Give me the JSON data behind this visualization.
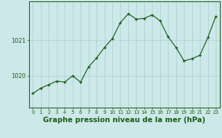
{
  "x": [
    0,
    1,
    2,
    3,
    4,
    5,
    6,
    7,
    8,
    9,
    10,
    11,
    12,
    13,
    14,
    15,
    16,
    17,
    18,
    19,
    20,
    21,
    22,
    23
  ],
  "y": [
    1019.5,
    1019.65,
    1019.75,
    1019.85,
    1019.82,
    1020.0,
    1019.82,
    1020.25,
    1020.5,
    1020.8,
    1021.05,
    1021.5,
    1021.75,
    1021.6,
    1021.62,
    1021.72,
    1021.55,
    1021.1,
    1020.8,
    1020.42,
    1020.48,
    1020.58,
    1021.08,
    1021.68
  ],
  "line_color": "#1a5c1a",
  "marker_color": "#1a5c1a",
  "bg_color": "#cce8e8",
  "grid_color": "#aacccc",
  "axis_color": "#1a5c1a",
  "title": "Graphe pression niveau de la mer (hPa)",
  "yticks": [
    1020,
    1021
  ],
  "xlim": [
    -0.5,
    23.5
  ],
  "ylim": [
    1019.1,
    1022.1
  ],
  "tick_fontsize": 6,
  "xlabel_fontsize": 7.5
}
